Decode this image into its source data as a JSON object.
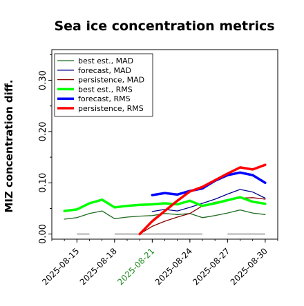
{
  "chart_data": {
    "type": "line",
    "title": "Sea ice concentration metrics",
    "xlabel": "",
    "ylabel": "MIZ concentration diff.",
    "ylim": [
      -0.01,
      0.36
    ],
    "xlim": [
      "2025-08-13",
      "2025-08-31"
    ],
    "yticks": [
      0.0,
      0.1,
      0.2,
      0.3
    ],
    "ytick_labels": [
      "0.00",
      "0.10",
      "0.20",
      "0.30"
    ],
    "xticks": [
      "2025-08-15",
      "2025-08-18",
      "2025-08-21",
      "2025-08-24",
      "2025-08-27",
      "2025-08-30"
    ],
    "xtick_colors": [
      "#000000",
      "#000000",
      "#228B22",
      "#000000",
      "#000000",
      "#000000"
    ],
    "grid": false,
    "legend_position": "upper left",
    "baselines": [
      {
        "color": "#808080",
        "x": [
          "2025-08-15",
          "2025-08-16"
        ],
        "y": [
          0.0,
          0.0
        ]
      },
      {
        "color": "#808080",
        "x": [
          "2025-08-18",
          "2025-08-25"
        ],
        "y": [
          0.0,
          0.0
        ]
      },
      {
        "color": "#808080",
        "x": [
          "2025-08-27",
          "2025-08-30"
        ],
        "y": [
          0.0,
          0.0
        ]
      }
    ],
    "series": [
      {
        "name": "best est., MAD",
        "color": "#1f6b1f",
        "width": 1.3,
        "x": [
          "2025-08-14",
          "2025-08-15",
          "2025-08-16",
          "2025-08-17",
          "2025-08-18",
          "2025-08-19",
          "2025-08-20",
          "2025-08-21",
          "2025-08-22",
          "2025-08-23",
          "2025-08-24",
          "2025-08-25",
          "2025-08-26",
          "2025-08-27",
          "2025-08-28",
          "2025-08-29",
          "2025-08-30"
        ],
        "y": [
          0.029,
          0.032,
          0.04,
          0.045,
          0.03,
          0.033,
          0.035,
          0.036,
          0.04,
          0.038,
          0.04,
          0.032,
          0.036,
          0.041,
          0.047,
          0.041,
          0.038
        ]
      },
      {
        "name": "forecast,  MAD",
        "color": "#00008b",
        "width": 1.3,
        "x": [
          "2025-08-21",
          "2025-08-22",
          "2025-08-23",
          "2025-08-24",
          "2025-08-25",
          "2025-08-26",
          "2025-08-27",
          "2025-08-28",
          "2025-08-29",
          "2025-08-30"
        ],
        "y": [
          0.044,
          0.048,
          0.045,
          0.052,
          0.06,
          0.068,
          0.078,
          0.087,
          0.082,
          0.07
        ]
      },
      {
        "name": "persistence, MAD",
        "color": "#8b0000",
        "width": 1.3,
        "x": [
          "2025-08-20",
          "2025-08-21",
          "2025-08-22",
          "2025-08-23",
          "2025-08-24",
          "2025-08-25",
          "2025-08-26",
          "2025-08-27",
          "2025-08-28",
          "2025-08-29",
          "2025-08-30"
        ],
        "y": [
          0.0,
          0.015,
          0.025,
          0.033,
          0.04,
          0.055,
          0.062,
          0.066,
          0.07,
          0.071,
          0.068
        ]
      },
      {
        "name": "best est., RMS",
        "color": "#00ff00",
        "width": 3.5,
        "x": [
          "2025-08-14",
          "2025-08-15",
          "2025-08-16",
          "2025-08-17",
          "2025-08-18",
          "2025-08-19",
          "2025-08-20",
          "2025-08-21",
          "2025-08-22",
          "2025-08-23",
          "2025-08-24",
          "2025-08-25",
          "2025-08-26",
          "2025-08-27",
          "2025-08-28",
          "2025-08-29",
          "2025-08-30"
        ],
        "y": [
          0.045,
          0.048,
          0.06,
          0.067,
          0.052,
          0.055,
          0.057,
          0.058,
          0.06,
          0.058,
          0.065,
          0.055,
          0.06,
          0.066,
          0.072,
          0.063,
          0.059
        ]
      },
      {
        "name": "forecast,  RMS",
        "color": "#0000ff",
        "width": 3.5,
        "x": [
          "2025-08-21",
          "2025-08-22",
          "2025-08-23",
          "2025-08-24",
          "2025-08-25",
          "2025-08-26",
          "2025-08-27",
          "2025-08-28",
          "2025-08-29",
          "2025-08-30"
        ],
        "y": [
          0.076,
          0.08,
          0.077,
          0.084,
          0.089,
          0.104,
          0.115,
          0.12,
          0.115,
          0.1
        ]
      },
      {
        "name": "persistence, RMS",
        "color": "#ff0000",
        "width": 3.5,
        "x": [
          "2025-08-20",
          "2025-08-21",
          "2025-08-22",
          "2025-08-23",
          "2025-08-24",
          "2025-08-25",
          "2025-08-26",
          "2025-08-27",
          "2025-08-28",
          "2025-08-29",
          "2025-08-30"
        ],
        "y": [
          0.0,
          0.025,
          0.045,
          0.065,
          0.083,
          0.092,
          0.105,
          0.118,
          0.13,
          0.126,
          0.135
        ]
      }
    ]
  }
}
